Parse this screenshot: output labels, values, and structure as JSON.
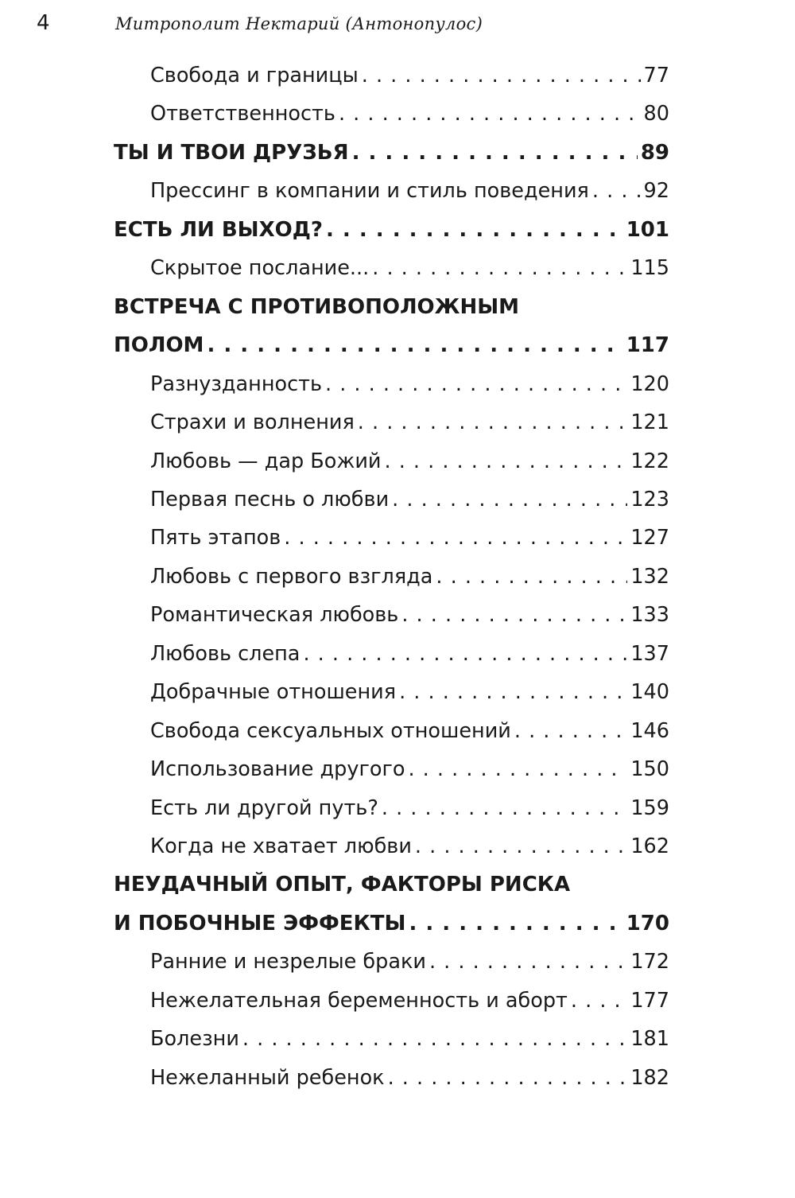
{
  "header": {
    "page_number": "4",
    "running_head": "Митрополит Нектарий (Антонопулос)"
  },
  "entries": [
    {
      "level": "sub",
      "title": "Свобода и границы",
      "page": "77"
    },
    {
      "level": "sub",
      "title": "Ответственность",
      "page": "80"
    },
    {
      "level": "chapter",
      "title": "ТЫ И ТВОИ ДРУЗЬЯ",
      "page": "89"
    },
    {
      "level": "sub",
      "title": "Прессинг в компании и стиль поведения",
      "page": "92"
    },
    {
      "level": "chapter",
      "title": "ЕСТЬ ЛИ ВЫХОД?",
      "page": "101"
    },
    {
      "level": "sub",
      "title": "Скрытое послание...",
      "page": "115"
    },
    {
      "level": "chapter",
      "title_line1": "ВСТРЕЧА С ПРОТИВОПОЛОЖНЫМ",
      "title": "ПОЛОМ",
      "page": "117"
    },
    {
      "level": "sub",
      "title": "Разнузданность",
      "page": "120"
    },
    {
      "level": "sub",
      "title": "Страхи и волнения",
      "page": "121"
    },
    {
      "level": "sub",
      "title": "Любовь — дар Божий",
      "page": "122"
    },
    {
      "level": "sub",
      "title": "Первая песнь о любви",
      "page": "123"
    },
    {
      "level": "sub",
      "title": "Пять этапов",
      "page": "127"
    },
    {
      "level": "sub",
      "title": "Любовь с первого взгляда",
      "page": "132"
    },
    {
      "level": "sub",
      "title": "Романтическая любовь",
      "page": "133"
    },
    {
      "level": "sub",
      "title": "Любовь слепа",
      "page": "137"
    },
    {
      "level": "sub",
      "title": "Добрачные отношения",
      "page": "140"
    },
    {
      "level": "sub",
      "title": "Свобода сексуальных отношений",
      "page": "146"
    },
    {
      "level": "sub",
      "title": "Использование другого",
      "page": "150"
    },
    {
      "level": "sub",
      "title": "Есть ли другой путь?",
      "page": "159"
    },
    {
      "level": "sub",
      "title": "Когда не хватает любви",
      "page": "162"
    },
    {
      "level": "chapter",
      "title_line1": "НЕУДАЧНЫЙ ОПЫТ, ФАКТОРЫ РИСКА",
      "title": "И ПОБОЧНЫЕ ЭФФЕКТЫ",
      "page": "170"
    },
    {
      "level": "sub",
      "title": "Ранние и незрелые браки",
      "page": "172"
    },
    {
      "level": "sub",
      "title": "Нежелательная беременность и аборт",
      "page": "177"
    },
    {
      "level": "sub",
      "title": "Болезни",
      "page": "181"
    },
    {
      "level": "sub",
      "title": "Нежеланный ребенок",
      "page": "182"
    }
  ]
}
